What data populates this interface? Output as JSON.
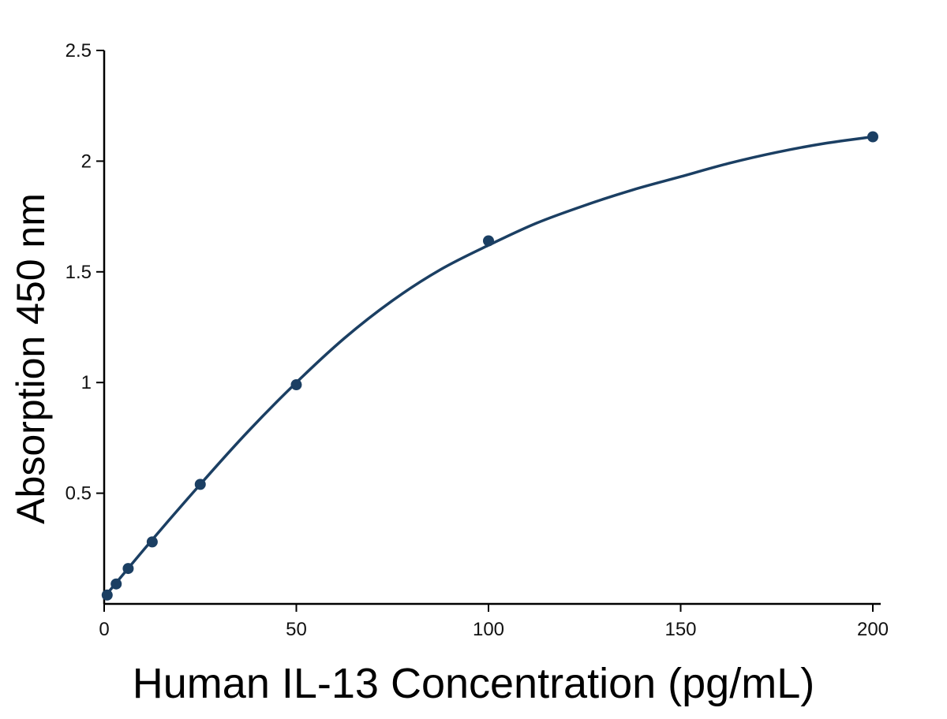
{
  "chart_data": {
    "type": "scatter",
    "title": "",
    "xlabel": "Human IL-13 Concentration (pg/mL)",
    "ylabel": "Absorption 450 nm",
    "xlim": [
      0,
      200
    ],
    "ylim": [
      0,
      2.5
    ],
    "x_ticks": [
      0,
      50,
      100,
      150,
      200
    ],
    "x_tick_labels": [
      "0",
      "50",
      "100",
      "150",
      "200"
    ],
    "y_ticks": [
      0.5,
      1,
      1.5,
      2,
      2.5
    ],
    "y_tick_labels": [
      "0.5",
      "1",
      "1.5",
      "2",
      "2.5"
    ],
    "grid": false,
    "legend": "none",
    "series": [
      {
        "x": [
          0.78,
          3.13,
          6.25,
          12.5,
          25,
          50,
          100,
          200
        ],
        "y": [
          0.04,
          0.09,
          0.16,
          0.28,
          0.54,
          0.99,
          1.64,
          2.11
        ],
        "fit": "4PL",
        "fit_curve": {
          "x": [
            0,
            12.5,
            25,
            37.5,
            50,
            62.5,
            75,
            87.5,
            100,
            112.5,
            125,
            137.5,
            150,
            162.5,
            175,
            187.5,
            200
          ],
          "y": [
            0.03,
            0.29,
            0.54,
            0.78,
            1.0,
            1.2,
            1.37,
            1.51,
            1.62,
            1.72,
            1.8,
            1.87,
            1.93,
            1.99,
            2.04,
            2.08,
            2.11
          ]
        }
      }
    ],
    "colors": {
      "series": "#1b3f63",
      "axis": "#000000"
    }
  }
}
